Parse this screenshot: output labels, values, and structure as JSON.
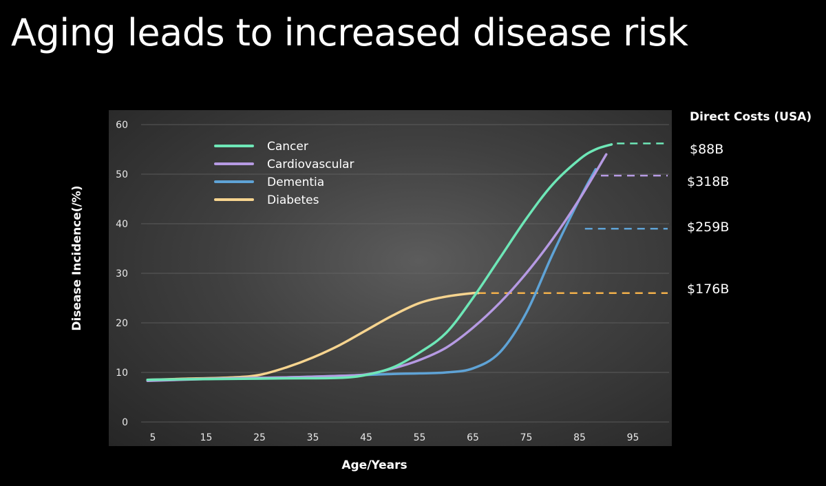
{
  "slide": {
    "title": "Aging leads to increased disease risk"
  },
  "chart_data": {
    "type": "line",
    "title": "",
    "xlabel": "Age/Years",
    "ylabel": "Disease Incidence(/%)",
    "xticks": [
      5,
      15,
      25,
      35,
      45,
      55,
      65,
      75,
      85,
      95
    ],
    "yticks": [
      0,
      10,
      20,
      30,
      40,
      50,
      60
    ],
    "xlim": [
      3,
      102
    ],
    "ylim": [
      0,
      60
    ],
    "grid": true,
    "legend_position": "top-left",
    "series": [
      {
        "name": "Cancer",
        "color": "#6ee7b7",
        "x": [
          4,
          10,
          20,
          30,
          40,
          45,
          50,
          55,
          60,
          65,
          70,
          75,
          80,
          85,
          88,
          91
        ],
        "y": [
          8.5,
          8.6,
          8.7,
          8.8,
          8.9,
          9.5,
          11,
          14,
          18,
          25,
          33,
          41,
          48,
          53,
          55,
          56
        ]
      },
      {
        "name": "Cardiovascular",
        "color": "#b69ae3",
        "x": [
          4,
          10,
          20,
          30,
          40,
          45,
          50,
          55,
          60,
          65,
          70,
          75,
          80,
          85,
          90
        ],
        "y": [
          8.3,
          8.5,
          8.8,
          9.0,
          9.3,
          9.6,
          10.8,
          12.5,
          15,
          19,
          24,
          30,
          37,
          45,
          54
        ]
      },
      {
        "name": "Dementia",
        "color": "#5fa3d6",
        "x": [
          4,
          10,
          20,
          30,
          40,
          45,
          50,
          55,
          60,
          65,
          70,
          75,
          80,
          85,
          88
        ],
        "y": [
          8.5,
          8.6,
          8.8,
          9.0,
          9.3,
          9.5,
          9.7,
          9.8,
          10,
          10.8,
          14,
          22,
          34,
          45,
          51
        ]
      },
      {
        "name": "Diabetes",
        "color": "#f6d48f",
        "x": [
          4,
          10,
          20,
          25,
          30,
          35,
          40,
          45,
          50,
          55,
          60,
          65,
          66
        ],
        "y": [
          8.5,
          8.7,
          9.0,
          9.5,
          11,
          13,
          15.5,
          18.5,
          21.5,
          24,
          25.3,
          26,
          26
        ]
      }
    ],
    "cost_lines": [
      {
        "label": "$88B",
        "value": 56.2,
        "x_start": 92,
        "color": "#6ee7b7"
      },
      {
        "label": "$318B",
        "value": 49.7,
        "x_start": 89,
        "color": "#b69ae3"
      },
      {
        "label": "$259B",
        "value": 39,
        "x_start": 86,
        "color": "#5fa3d6"
      },
      {
        "label": "$176B",
        "value": 26,
        "x_start": 66,
        "color": "#f2b04b"
      }
    ],
    "cost_header": "Direct Costs (USA)"
  }
}
